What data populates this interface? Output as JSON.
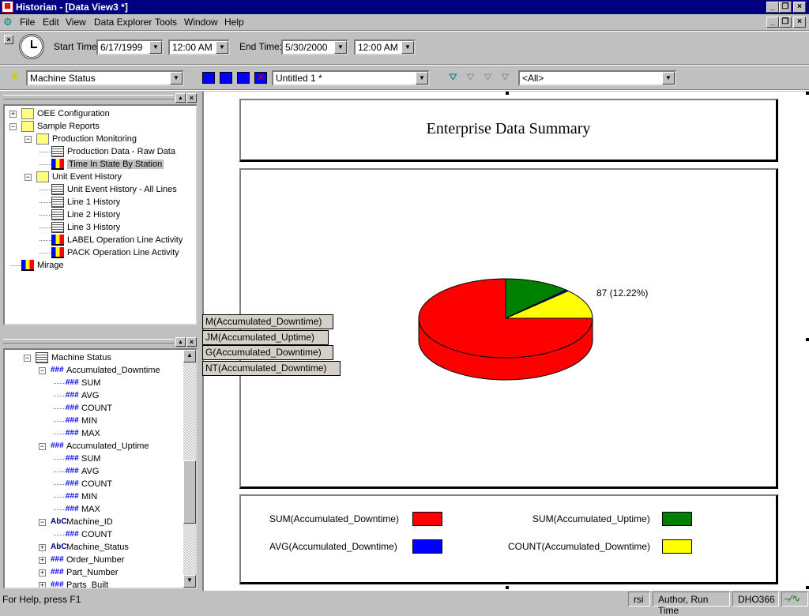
{
  "window": {
    "title": "Historian - [Data View3 *]",
    "app_icon": "historian-icon"
  },
  "menu": [
    "File",
    "Edit",
    "View",
    "Data Explorer",
    "Tools",
    "Window",
    "Help"
  ],
  "time_toolbar": {
    "start_label": "Start Time:",
    "start_date": "6/17/1999",
    "start_time": "12:00 AM",
    "end_label": "End Time:",
    "end_date": "5/30/2000",
    "end_time": "12:00 AM"
  },
  "toolbar2": {
    "source": "Machine Status",
    "view": "Untitled 1 *",
    "filter": "<All>"
  },
  "reports_tree": [
    {
      "label": "OEE Configuration",
      "level": 0,
      "icon": "folder",
      "expander": "+"
    },
    {
      "label": "Sample Reports",
      "level": 0,
      "icon": "folder",
      "expander": "-"
    },
    {
      "label": "Production Monitoring",
      "level": 1,
      "icon": "folder",
      "expander": "-"
    },
    {
      "label": "Production Data - Raw Data",
      "level": 2,
      "icon": "grid"
    },
    {
      "label": "Time In State By Station",
      "level": 2,
      "icon": "bars",
      "selected": true
    },
    {
      "label": "Unit Event History",
      "level": 1,
      "icon": "folder",
      "expander": "-"
    },
    {
      "label": "Unit Event History - All Lines",
      "level": 2,
      "icon": "grid"
    },
    {
      "label": "Line 1 History",
      "level": 2,
      "icon": "grid"
    },
    {
      "label": "Line 2 History",
      "level": 2,
      "icon": "grid"
    },
    {
      "label": "Line 3 History",
      "level": 2,
      "icon": "grid"
    },
    {
      "label": "LABEL Operation Line Activity",
      "level": 2,
      "icon": "bars"
    },
    {
      "label": "PACK Operation Line Activity",
      "level": 2,
      "icon": "bars"
    },
    {
      "label": "Mirage",
      "level": 0,
      "icon": "bars"
    }
  ],
  "fields_tree": [
    {
      "label": "Machine Status",
      "level": 0,
      "icon": "table",
      "expander": "-"
    },
    {
      "label": "Accumulated_Downtime",
      "level": 1,
      "icon": "hash",
      "expander": "-"
    },
    {
      "label": "SUM",
      "level": 2,
      "icon": "hash"
    },
    {
      "label": "AVG",
      "level": 2,
      "icon": "hash"
    },
    {
      "label": "COUNT",
      "level": 2,
      "icon": "hash"
    },
    {
      "label": "MIN",
      "level": 2,
      "icon": "hash"
    },
    {
      "label": "MAX",
      "level": 2,
      "icon": "hash"
    },
    {
      "label": "Accumulated_Uptime",
      "level": 1,
      "icon": "hash",
      "expander": "-"
    },
    {
      "label": "SUM",
      "level": 2,
      "icon": "hash"
    },
    {
      "label": "AVG",
      "level": 2,
      "icon": "hash"
    },
    {
      "label": "COUNT",
      "level": 2,
      "icon": "hash"
    },
    {
      "label": "MIN",
      "level": 2,
      "icon": "hash"
    },
    {
      "label": "MAX",
      "level": 2,
      "icon": "hash"
    },
    {
      "label": "Machine_ID",
      "level": 1,
      "icon": "abc",
      "expander": "-"
    },
    {
      "label": "COUNT",
      "level": 2,
      "icon": "hash"
    },
    {
      "label": "Machine_Status",
      "level": 1,
      "icon": "abc",
      "expander": "+"
    },
    {
      "label": "Order_Number",
      "level": 1,
      "icon": "hash",
      "expander": "+"
    },
    {
      "label": "Part_Number",
      "level": 1,
      "icon": "hash",
      "expander": "+"
    },
    {
      "label": "Parts_Built",
      "level": 1,
      "icon": "hash",
      "expander": "+"
    }
  ],
  "floating_tags": [
    "M(Accumulated_Downtime)",
    "JM(Accumulated_Uptime)",
    "G(Accumulated_Downtime)",
    "NT(Accumulated_Downtime)"
  ],
  "report": {
    "title": "Enterprise Data Summary"
  },
  "chart_data": {
    "type": "pie",
    "style": "3d",
    "series": [
      {
        "name": "SUM(Accumulated_Downtime)",
        "value": 534,
        "color": "#ff0000"
      },
      {
        "name": "SUM(Accumulated_Uptime)",
        "value": 87,
        "color": "#008000"
      },
      {
        "name": "AVG(Accumulated_Downtime)",
        "value": 4,
        "color": "#0000ff"
      },
      {
        "name": "COUNT(Accumulated_Downtime)",
        "value": 87,
        "color": "#ffff00",
        "data_label": "87 (12.22%)"
      }
    ],
    "legend_placement": "bottom"
  },
  "status": {
    "help": "For Help, press F1",
    "user": "rsi",
    "mode": "Author, Run Time",
    "node": "DHO366"
  }
}
